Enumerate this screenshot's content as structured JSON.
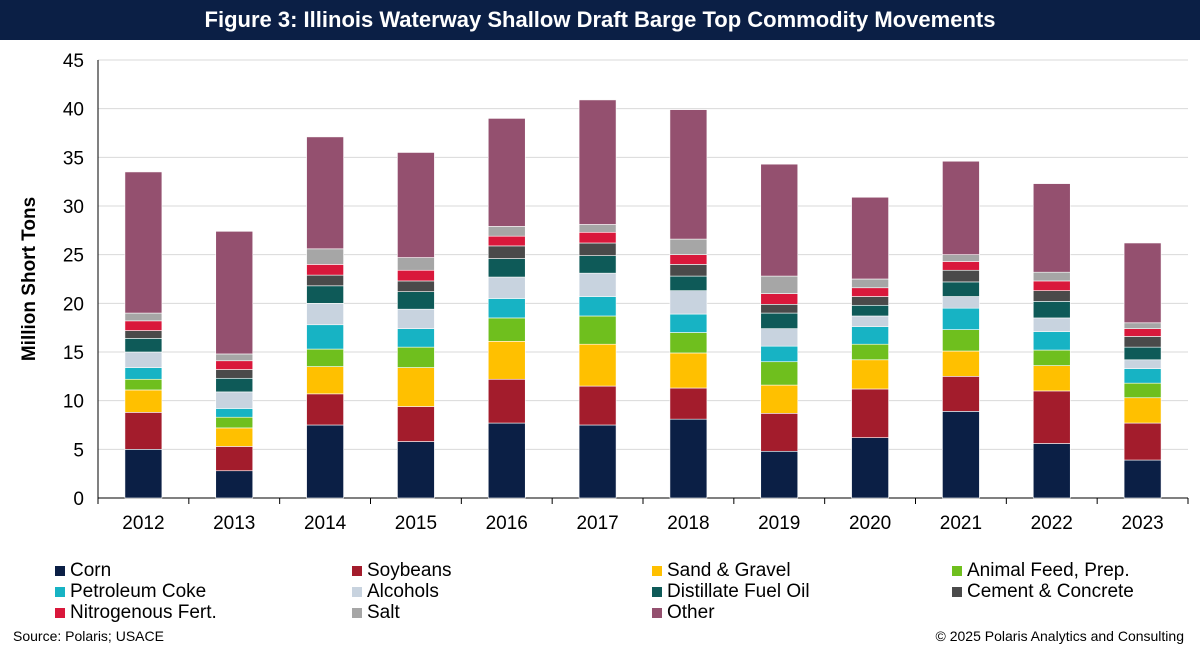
{
  "title": "Figure 3: Illinois Waterway Shallow Draft Barge Top Commodity Movements",
  "source": "Source: Polaris; USACE",
  "copyright": "© 2025 Polaris Analytics and Consulting",
  "chart_data": {
    "type": "bar",
    "stacked": true,
    "ylabel": "Million Short Tons",
    "ylim": [
      0,
      45
    ],
    "yticks": [
      0,
      5,
      10,
      15,
      20,
      25,
      30,
      35,
      40,
      45
    ],
    "grid": true,
    "legend_position": "bottom",
    "categories": [
      "2012",
      "2013",
      "2014",
      "2015",
      "2016",
      "2017",
      "2018",
      "2019",
      "2020",
      "2021",
      "2022",
      "2023"
    ],
    "series": [
      {
        "name": "Corn",
        "color": "#0b1f45",
        "values": [
          5.0,
          2.8,
          7.5,
          5.8,
          7.7,
          7.5,
          8.1,
          4.8,
          6.2,
          8.9,
          5.6,
          3.9
        ]
      },
      {
        "name": "Soybeans",
        "color": "#a31c2c",
        "values": [
          3.8,
          2.5,
          3.2,
          3.6,
          4.5,
          4.0,
          3.2,
          3.9,
          5.0,
          3.6,
          5.4,
          3.8
        ]
      },
      {
        "name": "Sand & Gravel",
        "color": "#ffc000",
        "values": [
          2.3,
          1.9,
          2.8,
          4.0,
          3.9,
          4.3,
          3.6,
          2.9,
          3.0,
          2.6,
          2.6,
          2.6
        ]
      },
      {
        "name": "Animal Feed, Prep.",
        "color": "#6fbf1e",
        "values": [
          1.1,
          1.1,
          1.8,
          2.1,
          2.4,
          2.9,
          2.1,
          2.4,
          1.6,
          2.2,
          1.6,
          1.5
        ]
      },
      {
        "name": "Petroleum Coke",
        "color": "#17b3c4",
        "values": [
          1.2,
          0.9,
          2.5,
          1.9,
          2.0,
          2.0,
          1.9,
          1.6,
          1.8,
          2.2,
          1.9,
          1.5
        ]
      },
      {
        "name": "Alcohols",
        "color": "#c8d3df",
        "values": [
          1.6,
          1.7,
          2.2,
          2.0,
          2.2,
          2.4,
          2.4,
          1.8,
          1.1,
          1.2,
          1.4,
          0.9
        ]
      },
      {
        "name": "Distillate Fuel Oil",
        "color": "#0e5a58",
        "values": [
          1.4,
          1.4,
          1.8,
          1.8,
          1.9,
          1.8,
          1.5,
          1.6,
          1.1,
          1.5,
          1.7,
          1.3
        ]
      },
      {
        "name": "Cement & Concrete",
        "color": "#4a4a4a",
        "values": [
          0.8,
          0.9,
          1.1,
          1.1,
          1.3,
          1.3,
          1.2,
          0.9,
          0.9,
          1.2,
          1.1,
          1.1
        ]
      },
      {
        "name": "Nitrogenous Fert.",
        "color": "#d9183b",
        "values": [
          1.0,
          0.9,
          1.1,
          1.1,
          1.0,
          1.1,
          1.0,
          1.1,
          0.9,
          0.9,
          1.0,
          0.8
        ]
      },
      {
        "name": "Salt",
        "color": "#a6a6a6",
        "values": [
          0.8,
          0.7,
          1.6,
          1.3,
          1.0,
          0.8,
          1.6,
          1.8,
          0.9,
          0.7,
          0.9,
          0.6
        ]
      },
      {
        "name": "Other",
        "color": "#94506f",
        "values": [
          14.5,
          12.6,
          11.5,
          10.8,
          11.1,
          12.8,
          13.3,
          11.5,
          8.4,
          9.6,
          9.1,
          8.2
        ]
      }
    ]
  }
}
